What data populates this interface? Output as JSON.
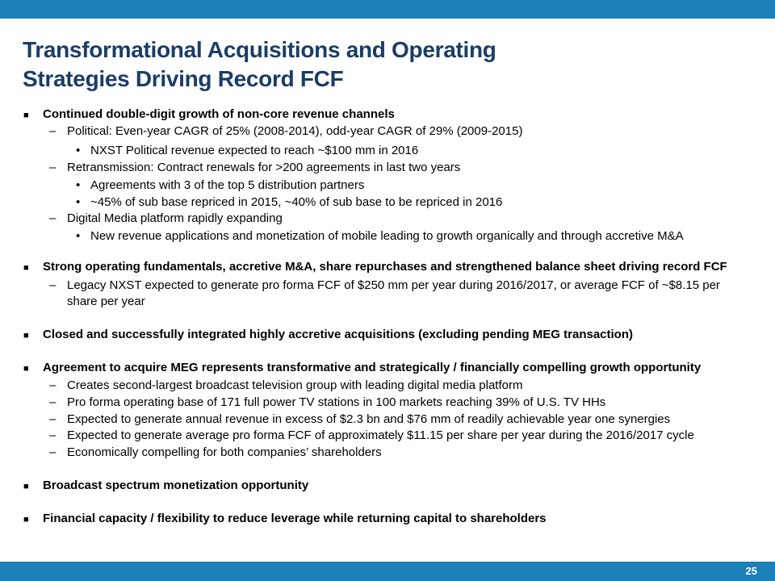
{
  "slide": {
    "title_line1": "Transformational Acquisitions and Operating",
    "title_line2": "Strategies Driving Record FCF",
    "page_number": "25",
    "colors": {
      "accent_bar": "#1b7fb8",
      "title": "#1a3d66"
    }
  },
  "bullets": {
    "b1": {
      "text": "Continued double-digit growth of non-core revenue channels",
      "s1": "Political: Even-year CAGR of 25% (2008-2014), odd-year CAGR of 29% (2009-2015)",
      "s1a": "NXST Political revenue expected to reach ~$100 mm in 2016",
      "s2": "Retransmission: Contract renewals for >200 agreements in last two years",
      "s2a": "Agreements with 3 of the top 5 distribution partners",
      "s2b": "~45% of sub base repriced in 2015, ~40% of sub base to be repriced in 2016",
      "s3": "Digital Media platform rapidly expanding",
      "s3a": "New revenue applications and monetization of mobile leading to growth organically and through accretive M&A"
    },
    "b2": {
      "text": "Strong operating fundamentals, accretive M&A, share repurchases and strengthened balance sheet driving record FCF",
      "s1_line1": "Legacy NXST expected to  generate pro forma FCF of $250 mm per year during  2016/2017, or average FCF of ~$8.15 per",
      "s1_line2": "share per year"
    },
    "b3": {
      "text": "Closed and successfully integrated highly accretive acquisitions (excluding pending MEG transaction)"
    },
    "b4": {
      "text": "Agreement to acquire MEG represents transformative and strategically / financially compelling growth opportunity",
      "s1": "Creates second-largest broadcast television group with leading digital media platform",
      "s2": "Pro forma operating base of 171 full power TV stations in 100 markets reaching 39% of U.S. TV HHs",
      "s3": "Expected to generate annual revenue in excess of $2.3 bn and $76 mm of readily achievable year one synergies",
      "s4": "Expected to generate  average pro forma FCF of approximately $11.15 per share per year during the 2016/2017 cycle",
      "s5": "Economically compelling for both companies’ shareholders"
    },
    "b5": {
      "text": "Broadcast spectrum monetization opportunity"
    },
    "b6": {
      "text": "Financial capacity / flexibility to reduce leverage while returning capital to shareholders"
    }
  },
  "markers": {
    "level1": "■",
    "level2": "–",
    "level3": "•"
  }
}
